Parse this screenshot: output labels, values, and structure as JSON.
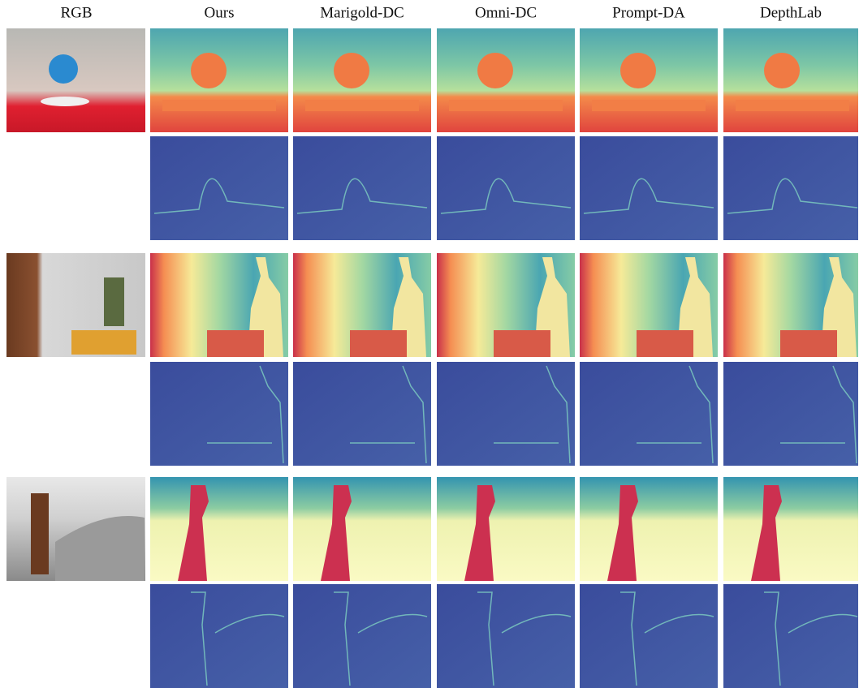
{
  "header": {
    "columns": [
      "RGB",
      "Ours",
      "Marigold-DC",
      "Omni-DC",
      "Prompt-DA",
      "DepthLab"
    ]
  }
}
